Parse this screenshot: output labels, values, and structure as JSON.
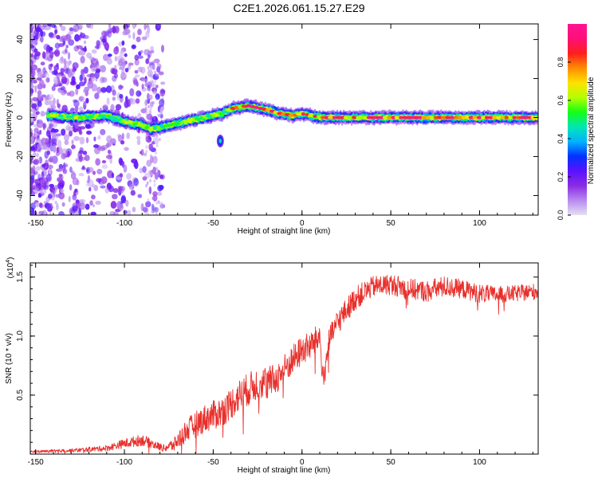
{
  "page": {
    "title": "C2E1.2026.061.15.27.E29"
  },
  "colors": {
    "snr_line": "#e8302c",
    "axis": "#000000",
    "colormap": [
      "#e5e0f2",
      "#b889f0",
      "#8a2be2",
      "#5a12ff",
      "#0032ff",
      "#00b4ff",
      "#00e6b4",
      "#14ff14",
      "#b4ff00",
      "#ffe100",
      "#ff8c00",
      "#ff1e1e",
      "#ff0f78",
      "#ff1493"
    ]
  },
  "chart_data": [
    {
      "id": "spectrogram",
      "type": "heatmap",
      "title": "C2E1.2026.061.15.27.E29",
      "xlabel": "Height of straight line (km)",
      "ylabel": "Frequency (Hz)",
      "xlim": [
        -153,
        133
      ],
      "ylim": [
        -50,
        48
      ],
      "xticks": [
        -150,
        -100,
        -50,
        0,
        50,
        100
      ],
      "yticks": [
        -40,
        -20,
        0,
        20,
        40
      ],
      "colorbar": {
        "label": "Normalized spectral amplitude",
        "range": [
          0,
          1
        ],
        "ticks": [
          "0.0",
          "0.2",
          "0.4",
          "0.6",
          "0.8"
        ]
      },
      "ridge": {
        "description": "dominant frequency vs height",
        "x": [
          -140,
          -125,
          -110,
          -100,
          -90,
          -85,
          -75,
          -65,
          -55,
          -45,
          -38,
          -30,
          -20,
          -12,
          -5,
          0,
          5,
          12,
          20,
          40,
          60,
          80,
          100,
          120,
          133
        ],
        "y": [
          1,
          0,
          1,
          -2,
          -4,
          -6,
          -4,
          -2,
          0,
          2,
          5,
          6,
          4,
          2,
          1,
          2,
          1,
          0,
          0,
          0,
          0,
          0,
          0,
          0,
          0
        ]
      },
      "blob": {
        "x": -46,
        "y": -12
      }
    },
    {
      "id": "snr",
      "type": "line",
      "xlabel": "Height of straight line (km)",
      "ylabel": "SNR (10 * v/v)",
      "y_multiplier": "(x10",
      "y_exponent": "4",
      "ylabel_suffix": ")",
      "xlim": [
        -153,
        133
      ],
      "ylim": [
        0,
        1.62
      ],
      "xticks": [
        -150,
        -100,
        -50,
        0,
        50,
        100
      ],
      "yticks": [
        "0.5",
        "1.0",
        "1.5"
      ],
      "series": [
        {
          "name": "SNR",
          "x": [
            -153,
            -130,
            -110,
            -100,
            -90,
            -85,
            -78,
            -72,
            -65,
            -55,
            -45,
            -35,
            -25,
            -15,
            -10,
            -5,
            0,
            5,
            10,
            12,
            15,
            20,
            25,
            30,
            40,
            50,
            60,
            70,
            80,
            90,
            100,
            110,
            120,
            133
          ],
          "y": [
            0.02,
            0.03,
            0.05,
            0.09,
            0.12,
            0.09,
            0.05,
            0.08,
            0.2,
            0.3,
            0.36,
            0.5,
            0.6,
            0.63,
            0.72,
            0.8,
            0.88,
            0.92,
            1.0,
            0.6,
            0.95,
            1.12,
            1.22,
            1.32,
            1.42,
            1.44,
            1.4,
            1.38,
            1.42,
            1.4,
            1.36,
            1.35,
            1.36,
            1.38
          ],
          "noise": [
            0.01,
            0.015,
            0.025,
            0.04,
            0.05,
            0.04,
            0.03,
            0.06,
            0.1,
            0.12,
            0.13,
            0.14,
            0.14,
            0.13,
            0.13,
            0.13,
            0.13,
            0.12,
            0.12,
            0.12,
            0.11,
            0.11,
            0.1,
            0.1,
            0.09,
            0.09,
            0.09,
            0.09,
            0.09,
            0.08,
            0.08,
            0.07,
            0.07,
            0.07
          ]
        }
      ]
    }
  ]
}
